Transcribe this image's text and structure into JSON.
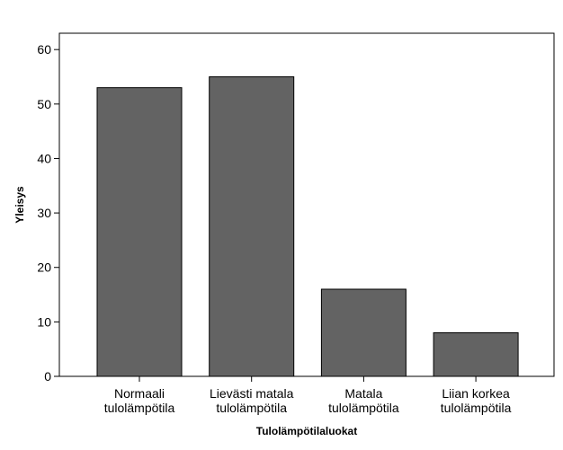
{
  "chart_data": {
    "type": "bar",
    "xlabel": "Tulolämpötilaluokat",
    "ylabel": "Yleisys",
    "categories": [
      "Normaali tulolämpötila",
      "Lievästi matala tulolämpötila",
      "Matala tulolämpötila",
      "Liian korkea tulolämpötila"
    ],
    "values": [
      53,
      55,
      16,
      8
    ],
    "color": "#636363",
    "ylim": [
      0,
      63
    ],
    "yticks": [
      0,
      10,
      20,
      30,
      40,
      50,
      60
    ],
    "grid": false
  }
}
